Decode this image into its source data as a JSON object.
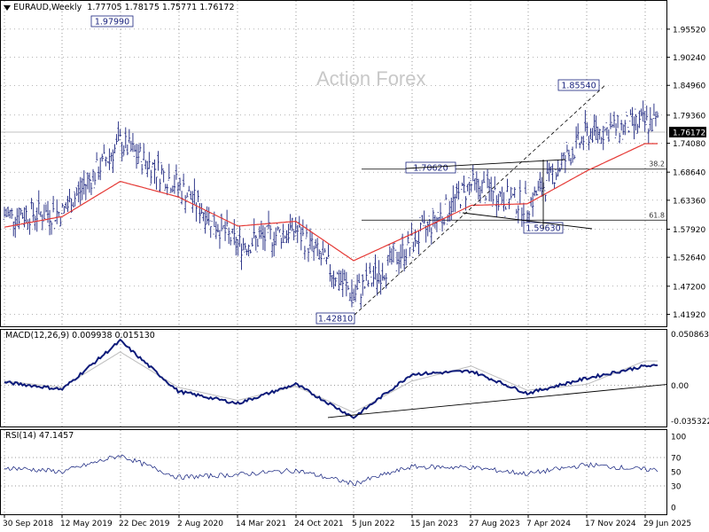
{
  "header": {
    "symbol": "EURAUD,Weekly",
    "ohlc": "1.77705 1.78175 1.75771 1.76172"
  },
  "watermark": "Action Forex",
  "macd": {
    "label": "MACD(12,26,9) 0.009938 0.015130",
    "ticks": [
      "0.050863",
      "0.00",
      "-0.035322"
    ]
  },
  "rsi": {
    "label": "RSI(14) 47.1457",
    "ticks": [
      "100",
      "70",
      "50",
      "30",
      "0"
    ]
  },
  "colors": {
    "price_bars": "#1a237e",
    "ma": "#e53935",
    "macd_line": "#0d1b7a",
    "signal_line": "#bdbdbd",
    "grid_dotted": "#000000",
    "current_price_line": "#c0c0c0",
    "fib_line": "#000000"
  },
  "chart_data": [
    {
      "type": "line",
      "pane": "price",
      "title": "EURAUD,Weekly",
      "y_ticks": [
        "1.95520",
        "1.90240",
        "1.84960",
        "1.79360",
        "1.74080",
        "1.68640",
        "1.63360",
        "1.57920",
        "1.52640",
        "1.47200",
        "1.41920"
      ],
      "ylim": [
        1.4,
        1.99
      ],
      "x_ticks": [
        "30 Sep 2018",
        "12 May 2019",
        "22 Dec 2019",
        "2 Aug 2020",
        "14 Mar 2021",
        "24 Oct 2021",
        "5 Jun 2022",
        "15 Jan 2023",
        "27 Aug 2023",
        "7 Apr 2024",
        "17 Nov 2024",
        "29 Jun 2025"
      ],
      "current_price": "1.76172",
      "annotations": [
        "1.97990",
        "1.85540",
        "1.70620",
        "1.59630",
        "1.42810"
      ],
      "fib_levels": [
        {
          "label": "38.2",
          "value": 1.6921
        },
        {
          "label": "61.8",
          "value": 1.5962
        }
      ],
      "series": [
        {
          "name": "",
          "kind": "price",
          "x": [
            "30 Sep 2018",
            "12 May 2019",
            "22 Dec 2019",
            "2 Aug 2020",
            "14 Mar 2021",
            "24 Oct 2021",
            "5 Jun 2022",
            "15 Jan 2023",
            "27 Aug 2023",
            "7 Apr 2024",
            "17 Nov 2024",
            "29 Jun 2025"
          ],
          "values": [
            1.606,
            1.611,
            1.742,
            1.662,
            1.549,
            1.579,
            1.455,
            1.551,
            1.663,
            1.624,
            1.759,
            1.779
          ]
        },
        {
          "name": "",
          "kind": "moving-average",
          "x": [
            "30 Sep 2018",
            "12 May 2019",
            "22 Dec 2019",
            "2 Aug 2020",
            "14 Mar 2021",
            "24 Oct 2021",
            "5 Jun 2022",
            "15 Jan 2023",
            "27 Aug 2023",
            "7 Apr 2024",
            "17 Nov 2024",
            "29 Jun 2025"
          ],
          "values": [
            1.583,
            1.603,
            1.669,
            1.64,
            1.585,
            1.594,
            1.52,
            1.57,
            1.624,
            1.627,
            1.689,
            1.74
          ]
        }
      ]
    },
    {
      "type": "line",
      "pane": "MACD(12,26,9)",
      "ylim": [
        -0.04,
        0.054
      ],
      "series": [
        {
          "name": "",
          "x": [
            "30 Sep 2018",
            "12 May 2019",
            "22 Dec 2019",
            "2 Aug 2020",
            "14 Mar 2021",
            "24 Oct 2021",
            "5 Jun 2022",
            "15 Jan 2023",
            "27 Aug 2023",
            "7 Apr 2024",
            "17 Nov 2024",
            "29 Jun 2025"
          ],
          "values": [
            0.003,
            -0.004,
            0.044,
            -0.006,
            -0.018,
            0.001,
            -0.032,
            0.011,
            0.014,
            -0.008,
            0.007,
            0.019
          ]
        },
        {
          "name": "",
          "x": [
            "30 Sep 2018",
            "12 May 2019",
            "22 Dec 2019",
            "2 Aug 2020",
            "14 Mar 2021",
            "24 Oct 2021",
            "5 Jun 2022",
            "15 Jan 2023",
            "27 Aug 2023",
            "7 Apr 2024",
            "17 Nov 2024",
            "29 Jun 2025"
          ],
          "values": [
            0.004,
            -0.002,
            0.033,
            -0.002,
            -0.015,
            -0.001,
            -0.027,
            0.004,
            0.019,
            -0.005,
            0.001,
            0.024
          ]
        }
      ]
    },
    {
      "type": "line",
      "pane": "RSI(14)",
      "ylim": [
        0,
        100
      ],
      "levels": [
        70,
        30
      ],
      "series": [
        {
          "name": "",
          "x": [
            "30 Sep 2018",
            "12 May 2019",
            "22 Dec 2019",
            "2 Aug 2020",
            "14 Mar 2021",
            "24 Oct 2021",
            "5 Jun 2022",
            "15 Jan 2023",
            "27 Aug 2023",
            "7 Apr 2024",
            "17 Nov 2024",
            "29 Jun 2025"
          ],
          "values": [
            56,
            50,
            73,
            42,
            46,
            52,
            33,
            57,
            56,
            47,
            60,
            53
          ]
        }
      ]
    }
  ]
}
